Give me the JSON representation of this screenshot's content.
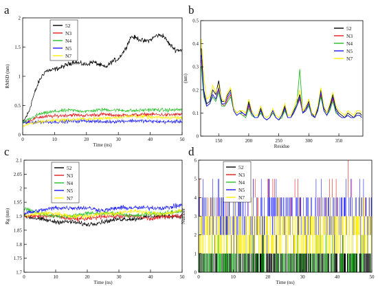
{
  "chart_data": [
    {
      "panel": "a",
      "type": "line",
      "xlabel": "Time (ns)",
      "ylabel": "RMSD (nm)",
      "xlim": [
        0,
        50
      ],
      "ylim": [
        0,
        2
      ],
      "xticks": [
        "0",
        "10",
        "20",
        "30",
        "40",
        "50"
      ],
      "yticks": [
        "0",
        "0.5",
        "1",
        "1.5",
        "2"
      ],
      "legend_position": "top-left",
      "series": [
        {
          "name": "52",
          "color": "#000000",
          "x": [
            0,
            1,
            2,
            3,
            4,
            5,
            6,
            7,
            8,
            9,
            10,
            12,
            14,
            16,
            18,
            20,
            22,
            24,
            26,
            28,
            30,
            32,
            34,
            36,
            38,
            40,
            42,
            44,
            46,
            48,
            50
          ],
          "values": [
            0.2,
            0.3,
            0.4,
            0.6,
            0.75,
            0.9,
            1.0,
            1.08,
            1.1,
            1.1,
            1.12,
            1.15,
            1.2,
            1.25,
            1.22,
            1.2,
            1.25,
            1.2,
            1.15,
            1.25,
            1.3,
            1.45,
            1.68,
            1.65,
            1.6,
            1.62,
            1.7,
            1.7,
            1.55,
            1.45,
            1.45
          ]
        },
        {
          "name": "N3",
          "color": "#e41a1c",
          "x": [
            0,
            5,
            10,
            15,
            20,
            25,
            30,
            35,
            40,
            45,
            50
          ],
          "values": [
            0.2,
            0.3,
            0.32,
            0.34,
            0.33,
            0.35,
            0.33,
            0.34,
            0.35,
            0.34,
            0.35
          ]
        },
        {
          "name": "N4",
          "color": "#22c022",
          "x": [
            0,
            5,
            10,
            15,
            20,
            25,
            30,
            35,
            40,
            45,
            50
          ],
          "values": [
            0.2,
            0.35,
            0.4,
            0.42,
            0.4,
            0.43,
            0.42,
            0.41,
            0.43,
            0.42,
            0.43
          ]
        },
        {
          "name": "N5",
          "color": "#1a1aff",
          "x": [
            0,
            5,
            10,
            15,
            20,
            25,
            30,
            35,
            40,
            45,
            50
          ],
          "values": [
            0.2,
            0.22,
            0.22,
            0.23,
            0.24,
            0.22,
            0.23,
            0.24,
            0.23,
            0.22,
            0.23
          ]
        },
        {
          "name": "N7",
          "color": "#ffee00",
          "x": [
            0,
            5,
            10,
            15,
            20,
            25,
            30,
            35,
            40,
            45,
            50
          ],
          "values": [
            0.15,
            0.22,
            0.25,
            0.26,
            0.27,
            0.28,
            0.3,
            0.32,
            0.3,
            0.29,
            0.3
          ]
        }
      ]
    },
    {
      "panel": "b",
      "type": "line",
      "xlabel": "Residue",
      "ylabel": "(nm)",
      "xlim": [
        120,
        390
      ],
      "ylim": [
        0,
        0.5
      ],
      "xticks": [
        "150",
        "200",
        "250",
        "300",
        "350"
      ],
      "yticks": [
        "0",
        "0.1",
        "0.2",
        "0.3",
        "0.4",
        "0.5"
      ],
      "legend_position": "top-right",
      "x": [
        121,
        125,
        130,
        135,
        140,
        145,
        150,
        155,
        160,
        165,
        170,
        175,
        180,
        185,
        190,
        195,
        200,
        205,
        210,
        215,
        220,
        225,
        230,
        235,
        240,
        245,
        250,
        255,
        260,
        265,
        270,
        275,
        280,
        285,
        290,
        295,
        300,
        305,
        310,
        315,
        320,
        325,
        330,
        335,
        340,
        345,
        350,
        355,
        360,
        365,
        370,
        375,
        380,
        385,
        388
      ],
      "series": [
        {
          "name": "52",
          "color": "#000000",
          "values": [
            0.38,
            0.2,
            0.14,
            0.15,
            0.2,
            0.18,
            0.24,
            0.15,
            0.15,
            0.18,
            0.2,
            0.12,
            0.1,
            0.11,
            0.1,
            0.09,
            0.15,
            0.1,
            0.08,
            0.08,
            0.12,
            0.08,
            0.07,
            0.08,
            0.11,
            0.08,
            0.07,
            0.09,
            0.13,
            0.08,
            0.08,
            0.11,
            0.14,
            0.18,
            0.1,
            0.12,
            0.15,
            0.1,
            0.08,
            0.12,
            0.2,
            0.12,
            0.1,
            0.13,
            0.18,
            0.12,
            0.1,
            0.09,
            0.08,
            0.1,
            0.09,
            0.08,
            0.1,
            0.1,
            0.09
          ]
        },
        {
          "name": "N3",
          "color": "#e41a1c",
          "values": [
            0.33,
            0.18,
            0.13,
            0.14,
            0.18,
            0.16,
            0.2,
            0.14,
            0.13,
            0.16,
            0.18,
            0.11,
            0.09,
            0.1,
            0.09,
            0.09,
            0.13,
            0.09,
            0.08,
            0.08,
            0.1,
            0.08,
            0.07,
            0.08,
            0.1,
            0.08,
            0.07,
            0.08,
            0.12,
            0.08,
            0.08,
            0.1,
            0.13,
            0.16,
            0.1,
            0.11,
            0.14,
            0.09,
            0.08,
            0.11,
            0.18,
            0.11,
            0.09,
            0.12,
            0.16,
            0.11,
            0.09,
            0.08,
            0.08,
            0.09,
            0.08,
            0.08,
            0.09,
            0.09,
            0.08
          ]
        },
        {
          "name": "N4",
          "color": "#22c022",
          "values": [
            0.3,
            0.17,
            0.13,
            0.14,
            0.17,
            0.15,
            0.19,
            0.13,
            0.13,
            0.15,
            0.17,
            0.11,
            0.09,
            0.1,
            0.09,
            0.08,
            0.12,
            0.09,
            0.08,
            0.08,
            0.1,
            0.08,
            0.07,
            0.08,
            0.1,
            0.08,
            0.07,
            0.08,
            0.11,
            0.08,
            0.08,
            0.1,
            0.14,
            0.29,
            0.1,
            0.11,
            0.13,
            0.09,
            0.08,
            0.11,
            0.17,
            0.11,
            0.09,
            0.11,
            0.15,
            0.1,
            0.09,
            0.08,
            0.08,
            0.09,
            0.08,
            0.08,
            0.09,
            0.09,
            0.08
          ]
        },
        {
          "name": "N5",
          "color": "#1a1aff",
          "values": [
            0.35,
            0.19,
            0.13,
            0.14,
            0.18,
            0.16,
            0.21,
            0.14,
            0.14,
            0.17,
            0.19,
            0.11,
            0.09,
            0.1,
            0.1,
            0.09,
            0.14,
            0.1,
            0.08,
            0.08,
            0.11,
            0.08,
            0.07,
            0.08,
            0.11,
            0.08,
            0.07,
            0.09,
            0.12,
            0.08,
            0.08,
            0.1,
            0.13,
            0.17,
            0.1,
            0.11,
            0.14,
            0.09,
            0.08,
            0.11,
            0.19,
            0.11,
            0.09,
            0.12,
            0.17,
            0.11,
            0.09,
            0.08,
            0.08,
            0.09,
            0.08,
            0.08,
            0.09,
            0.09,
            0.08
          ]
        },
        {
          "name": "N7",
          "color": "#ffee00",
          "values": [
            0.42,
            0.26,
            0.16,
            0.17,
            0.22,
            0.19,
            0.22,
            0.16,
            0.15,
            0.19,
            0.21,
            0.12,
            0.1,
            0.11,
            0.11,
            0.1,
            0.16,
            0.11,
            0.09,
            0.09,
            0.13,
            0.09,
            0.08,
            0.09,
            0.12,
            0.09,
            0.08,
            0.1,
            0.14,
            0.09,
            0.09,
            0.12,
            0.16,
            0.2,
            0.11,
            0.13,
            0.16,
            0.1,
            0.09,
            0.13,
            0.21,
            0.13,
            0.1,
            0.14,
            0.19,
            0.13,
            0.11,
            0.1,
            0.09,
            0.11,
            0.1,
            0.09,
            0.11,
            0.11,
            0.1
          ]
        }
      ]
    },
    {
      "panel": "c",
      "type": "line",
      "xlabel": "Time (ns)",
      "ylabel": "Rg (nm)",
      "xlim": [
        0,
        50
      ],
      "ylim": [
        1.7,
        2.1
      ],
      "xticks": [
        "0",
        "10",
        "20",
        "30",
        "40",
        "50"
      ],
      "yticks": [
        "1.7",
        "1.75",
        "1.8",
        "1.85",
        "1.9",
        "1.95",
        "2",
        "2.05",
        "2.1"
      ],
      "legend_position": "top-left",
      "series": [
        {
          "name": "52",
          "color": "#000000",
          "x": [
            0,
            5,
            10,
            15,
            20,
            25,
            30,
            35,
            40,
            45,
            50
          ],
          "values": [
            1.9,
            1.89,
            1.88,
            1.88,
            1.87,
            1.88,
            1.89,
            1.89,
            1.9,
            1.9,
            1.9
          ]
        },
        {
          "name": "N3",
          "color": "#e41a1c",
          "x": [
            0,
            5,
            10,
            15,
            20,
            25,
            30,
            35,
            40,
            45,
            50
          ],
          "values": [
            1.9,
            1.9,
            1.9,
            1.89,
            1.89,
            1.9,
            1.9,
            1.9,
            1.89,
            1.9,
            1.9
          ]
        },
        {
          "name": "N4",
          "color": "#22c022",
          "x": [
            0,
            5,
            10,
            15,
            20,
            25,
            30,
            35,
            40,
            45,
            50
          ],
          "values": [
            1.93,
            1.91,
            1.9,
            1.9,
            1.91,
            1.91,
            1.91,
            1.9,
            1.91,
            1.91,
            1.92
          ]
        },
        {
          "name": "N5",
          "color": "#1a1aff",
          "x": [
            0,
            5,
            10,
            15,
            20,
            25,
            30,
            35,
            40,
            45,
            50
          ],
          "values": [
            1.91,
            1.92,
            1.93,
            1.93,
            1.93,
            1.92,
            1.93,
            1.93,
            1.93,
            1.93,
            1.94
          ]
        },
        {
          "name": "N7",
          "color": "#ffee00",
          "x": [
            0,
            5,
            10,
            15,
            20,
            25,
            30,
            35,
            40,
            45,
            50
          ],
          "values": [
            1.9,
            1.91,
            1.91,
            1.9,
            1.9,
            1.91,
            1.91,
            1.92,
            1.91,
            1.91,
            1.92
          ]
        }
      ]
    },
    {
      "panel": "d",
      "type": "line",
      "xlabel": "Time (ns)",
      "ylabel": "Number",
      "xlim": [
        0,
        50
      ],
      "ylim": [
        0,
        6
      ],
      "xticks": [
        "0",
        "10",
        "20",
        "30",
        "40",
        "50"
      ],
      "yticks": [
        "0",
        "1",
        "2",
        "3",
        "4",
        "5",
        "6"
      ],
      "legend_position": "top-left",
      "series": [
        {
          "name": "52",
          "color": "#000000",
          "band": [
            0,
            1
          ],
          "density": 0.55
        },
        {
          "name": "N3",
          "color": "#e41a1c",
          "band": [
            3,
            5
          ],
          "density": 0.08
        },
        {
          "name": "N4",
          "color": "#22c022",
          "band": [
            0,
            1
          ],
          "density": 0.22
        },
        {
          "name": "N5",
          "color": "#1a1aff",
          "band": [
            2,
            4
          ],
          "density": 0.45
        },
        {
          "name": "N7",
          "color": "#ffee00",
          "band": [
            1,
            3
          ],
          "density": 0.6
        }
      ]
    }
  ],
  "panels": {
    "a": {
      "letter": "a"
    },
    "b": {
      "letter": "b"
    },
    "c": {
      "letter": "c"
    },
    "d": {
      "letter": "d"
    }
  }
}
